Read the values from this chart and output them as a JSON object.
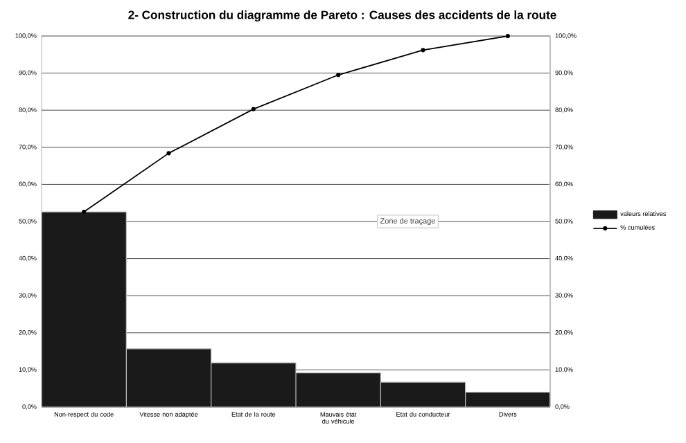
{
  "chart_data": {
    "type": "bar",
    "title": "2- Construction du diagramme de Pareto : Causes des accidents de la route",
    "categories": [
      "Non-respect du code",
      "Vitesse non adaptée",
      "Etat de la route",
      "Mauvais état du véhicule",
      "Etat du conducteur",
      "Divers"
    ],
    "series": [
      {
        "name": "valeurs relatives",
        "color": "#1a1a1a",
        "values": [
          52.6,
          15.7,
          11.9,
          9.2,
          6.7,
          4.0
        ]
      },
      {
        "name": "% cumulées",
        "type": "line",
        "axis": "y2",
        "color": "#000000",
        "values": [
          52.6,
          68.4,
          80.3,
          89.5,
          96.2,
          100
        ]
      }
    ],
    "ylim": [
      0,
      100
    ],
    "yticks": [
      {
        "value": 0,
        "label": "0,0%"
      },
      {
        "value": 10,
        "label": "10,0%"
      },
      {
        "value": 20,
        "label": "20,0%"
      },
      {
        "value": 30,
        "label": "30,0%"
      },
      {
        "value": 40,
        "label": "40,0%"
      },
      {
        "value": 50,
        "label": "50,0%"
      },
      {
        "value": 60,
        "label": "60,0%"
      },
      {
        "value": 70,
        "label": "70,0%"
      },
      {
        "value": 80,
        "label": "80,0%"
      },
      {
        "value": 90,
        "label": "90,0%"
      },
      {
        "value": 100,
        "label": "100,0%"
      }
    ],
    "y2lim": [
      0,
      100
    ],
    "y2ticks": [
      {
        "value": 0,
        "label": "0,0%"
      },
      {
        "value": 10,
        "label": "10,0%"
      },
      {
        "value": 20,
        "label": "20,0%"
      },
      {
        "value": 30,
        "label": "30,0%"
      },
      {
        "value": 40,
        "label": "40,0%"
      },
      {
        "value": 50,
        "label": "50,0%"
      },
      {
        "value": 60,
        "label": "60,0%"
      },
      {
        "value": 70,
        "label": "70,0%"
      },
      {
        "value": 80,
        "label": "80,0%"
      },
      {
        "value": 90,
        "label": "90,0%"
      },
      {
        "value": 100,
        "label": "100,0%"
      }
    ],
    "grid": "y",
    "legend": "right",
    "marker": "circle",
    "annotations": [
      "Zone de traçage"
    ]
  }
}
